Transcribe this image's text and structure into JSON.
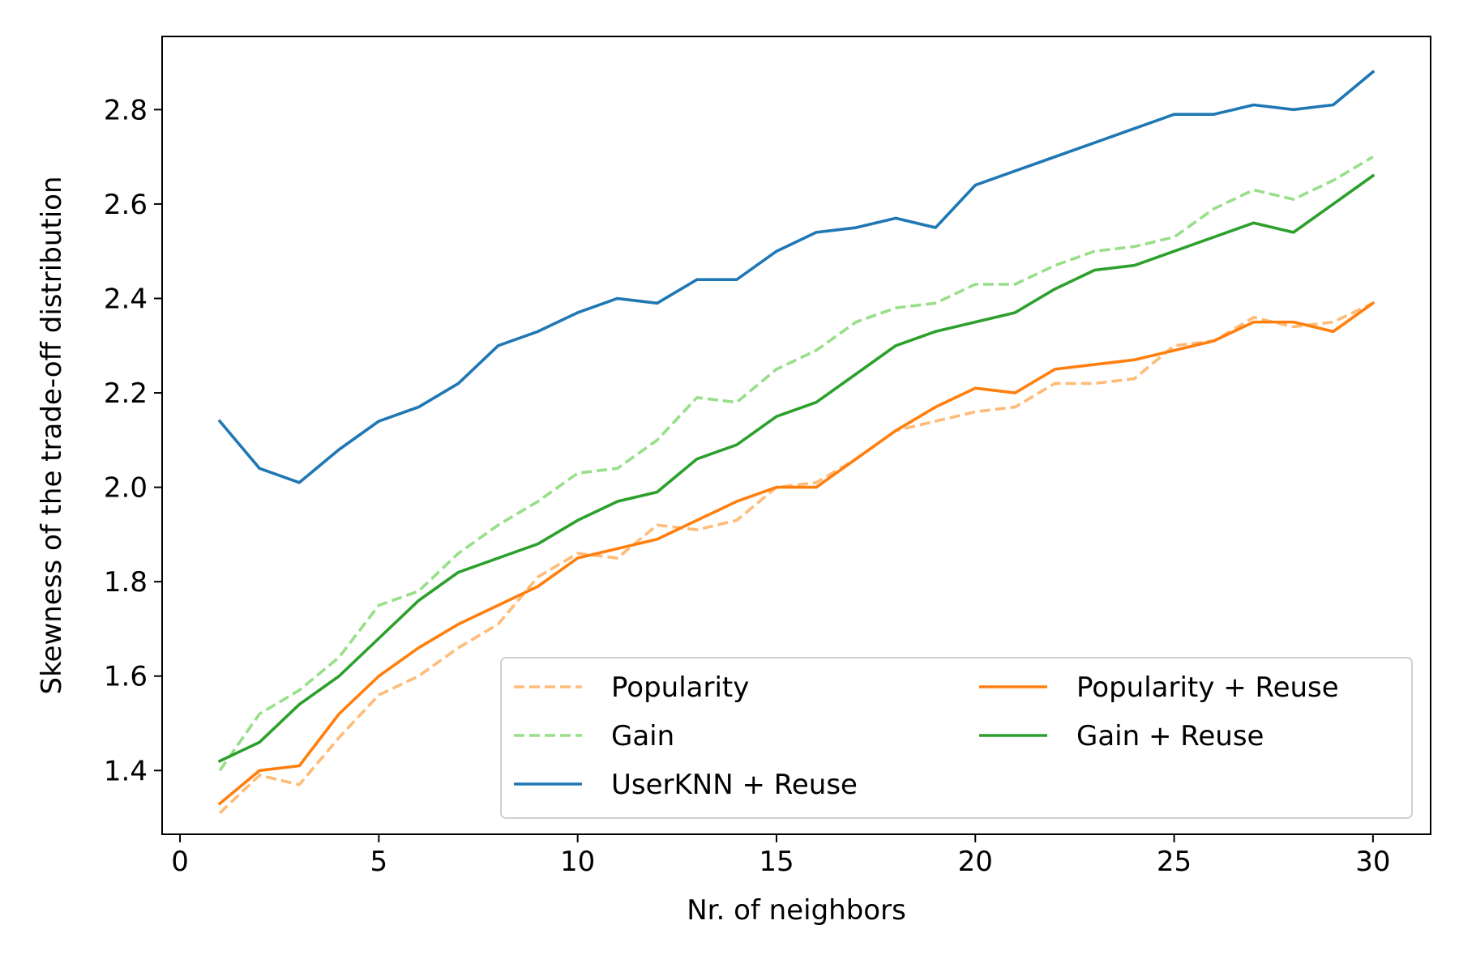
{
  "chart_data": {
    "type": "line",
    "xlabel": "Nr. of neighbors",
    "ylabel": "Skewness of the trade-off distribution",
    "xlim": [
      -0.45,
      31.45
    ],
    "ylim": [
      1.265,
      2.955
    ],
    "xticks": [
      0,
      5,
      10,
      15,
      20,
      25,
      30
    ],
    "xtick_labels": [
      "0",
      "5",
      "10",
      "15",
      "20",
      "25",
      "30"
    ],
    "yticks": [
      1.4,
      1.6,
      1.8,
      2.0,
      2.2,
      2.4,
      2.6,
      2.8
    ],
    "ytick_labels": [
      "1.4",
      "1.6",
      "1.8",
      "2.0",
      "2.2",
      "2.4",
      "2.6",
      "2.8"
    ],
    "grid": false,
    "legend_position": "lower-right",
    "x": [
      1,
      2,
      3,
      4,
      5,
      6,
      7,
      8,
      9,
      10,
      11,
      12,
      13,
      14,
      15,
      16,
      17,
      18,
      19,
      20,
      21,
      22,
      23,
      24,
      25,
      26,
      27,
      28,
      29,
      30
    ],
    "series": [
      {
        "name": "Popularity",
        "color": "#ffbb78",
        "dash": "dashed",
        "values": [
          1.31,
          1.39,
          1.37,
          1.47,
          1.56,
          1.6,
          1.66,
          1.71,
          1.81,
          1.86,
          1.85,
          1.92,
          1.91,
          1.93,
          2.0,
          2.01,
          2.06,
          2.12,
          2.14,
          2.16,
          2.17,
          2.22,
          2.22,
          2.23,
          2.3,
          2.31,
          2.36,
          2.34,
          2.35,
          2.39
        ]
      },
      {
        "name": "Gain",
        "color": "#98df8a",
        "dash": "dashed",
        "values": [
          1.4,
          1.52,
          1.57,
          1.64,
          1.75,
          1.78,
          1.86,
          1.92,
          1.97,
          2.03,
          2.04,
          2.1,
          2.19,
          2.18,
          2.25,
          2.29,
          2.35,
          2.38,
          2.39,
          2.43,
          2.43,
          2.47,
          2.5,
          2.51,
          2.53,
          2.59,
          2.63,
          2.61,
          2.65,
          2.7
        ]
      },
      {
        "name": "UserKNN + Reuse",
        "color": "#1f77b4",
        "dash": "solid",
        "values": [
          2.14,
          2.04,
          2.01,
          2.08,
          2.14,
          2.17,
          2.22,
          2.3,
          2.33,
          2.37,
          2.4,
          2.39,
          2.44,
          2.44,
          2.5,
          2.54,
          2.55,
          2.57,
          2.55,
          2.64,
          2.67,
          2.7,
          2.73,
          2.76,
          2.79,
          2.79,
          2.81,
          2.8,
          2.81,
          2.88
        ]
      },
      {
        "name": "Popularity + Reuse",
        "color": "#ff7f0e",
        "dash": "solid",
        "values": [
          1.33,
          1.4,
          1.41,
          1.52,
          1.6,
          1.66,
          1.71,
          1.75,
          1.79,
          1.85,
          1.87,
          1.89,
          1.93,
          1.97,
          2.0,
          2.0,
          2.06,
          2.12,
          2.17,
          2.21,
          2.2,
          2.25,
          2.26,
          2.27,
          2.29,
          2.31,
          2.35,
          2.35,
          2.33,
          2.39
        ]
      },
      {
        "name": "Gain + Reuse",
        "color": "#2ca02c",
        "dash": "solid",
        "values": [
          1.42,
          1.46,
          1.54,
          1.6,
          1.68,
          1.76,
          1.82,
          1.85,
          1.88,
          1.93,
          1.97,
          1.99,
          2.06,
          2.09,
          2.15,
          2.18,
          2.24,
          2.3,
          2.33,
          2.35,
          2.37,
          2.42,
          2.46,
          2.47,
          2.5,
          2.53,
          2.56,
          2.54,
          2.6,
          2.66
        ]
      }
    ]
  }
}
